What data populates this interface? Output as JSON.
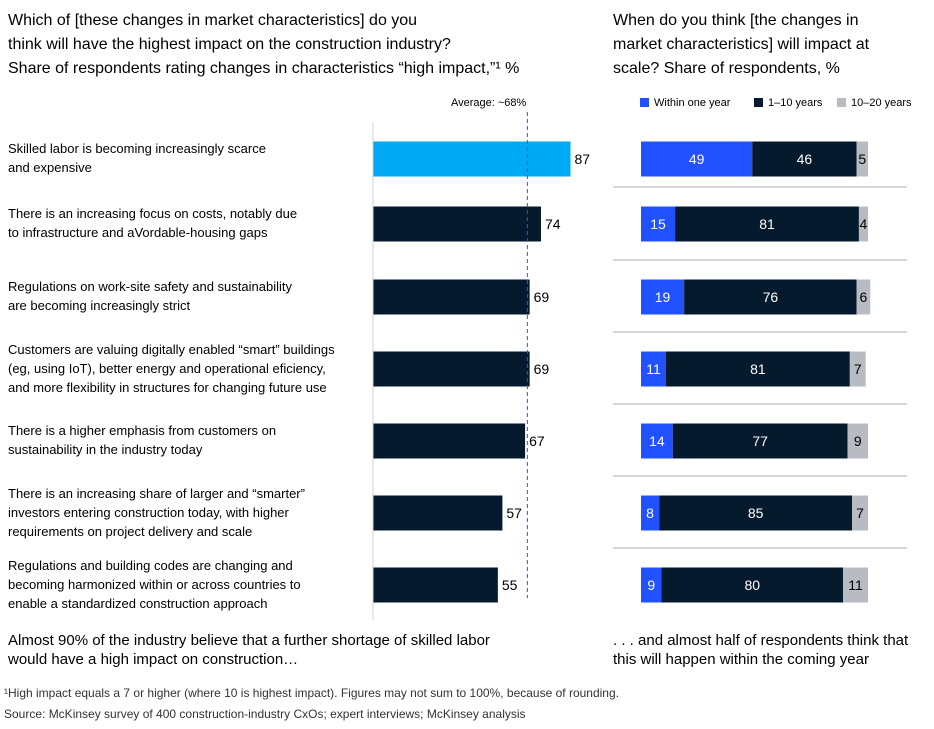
{
  "left_header": {
    "line1": "Which of [these changes in market characteristics] do you",
    "line2": "think will have the highest impact on the construction industry?",
    "subtitle": "Share of respondents rating changes in characteristics “high impact,”¹ %"
  },
  "right_header": {
    "line1": "When do you think [the changes in",
    "line2": "market characteristics] will impact at",
    "line3": "scale? Share of respondents, %"
  },
  "average_label": "Average: ~68%",
  "rows": [
    {
      "lines": [
        "Skilled labor is becoming increasingly scarce",
        "and expensive"
      ]
    },
    {
      "lines": [
        "There is an increasing focus on costs, notably due",
        "to infrastructure and aVordable-housing gaps"
      ]
    },
    {
      "lines": [
        "Regulations on work-site safety and sustainability",
        "are becoming increasingly strict"
      ]
    },
    {
      "lines": [
        "Customers are valuing digitally enabled “smart” buildings",
        "(eg, using IoT), better energy and operational eficiency,",
        "and more flexibility in structures for changing future use"
      ]
    },
    {
      "lines": [
        "There is a higher emphasis from customers on",
        "sustainability in the industry today"
      ]
    },
    {
      "lines": [
        "There is an increasing share of larger and “smarter”",
        "investors entering construction today, with higher",
        "requirements on project delivery and scale"
      ]
    },
    {
      "lines": [
        "Regulations and building codes are changing and",
        "becoming harmonized within or across countries to",
        "enable a standardized construction approach"
      ]
    }
  ],
  "footer_left": {
    "line1": "Almost 90% of the industry believe that a further shortage of skilled labor",
    "line2": "would have a high impact on construction…"
  },
  "footer_right": {
    "line1": ". . . and almost half of respondents think that",
    "line2": "this will happen within the coming year"
  },
  "footnote": "¹High impact equals a 7 or higher (where 10 is highest impact). Figures may not sum to 100%, because of rounding.",
  "source": "Source: McKinsey survey of 400 construction-industry CxOs; expert interviews; McKinsey analysis",
  "colors": {
    "highlight": "#00a9f4",
    "dark": "#061a2e",
    "within_one_year": "#2251ff",
    "one_to_ten_years": "#061a2e",
    "ten_to_twenty_years": "#b8bcc2",
    "average_line": "#2251ff",
    "divider": "#b0b0b0"
  },
  "chart_data": [
    {
      "type": "bar",
      "orientation": "horizontal",
      "categories": [
        "Skilled labor is becoming increasingly scarce and expensive",
        "There is an increasing focus on costs, notably due to infrastructure and aVordable-housing gaps",
        "Regulations on work-site safety and sustainability are becoming increasingly strict",
        "Customers are valuing digitally enabled “smart” buildings (eg, using IoT), better energy and operational eficiency, and more flexibility in structures for changing future use",
        "There is a higher emphasis from customers on sustainability in the industry today",
        "There is an increasing share of larger and “smarter” investors entering construction today, with higher requirements on project delivery and scale",
        "Regulations and building codes are changing and becoming harmonized within or across countries to enable a standardized construction approach"
      ],
      "values": [
        87,
        74,
        69,
        69,
        67,
        57,
        55
      ],
      "highlight_index": 0,
      "average": 68,
      "xlim": [
        0,
        100
      ],
      "grid": false
    },
    {
      "type": "bar",
      "orientation": "horizontal",
      "stacked": true,
      "legend_position": "top-right",
      "series": [
        {
          "name": "Within one year",
          "values": [
            49,
            15,
            19,
            11,
            14,
            8,
            9
          ]
        },
        {
          "name": "1–10 years",
          "values": [
            46,
            81,
            76,
            81,
            77,
            85,
            80
          ]
        },
        {
          "name": "10–20 years",
          "values": [
            5,
            4,
            6,
            7,
            9,
            7,
            11
          ]
        }
      ],
      "xlim": [
        0,
        100
      ],
      "grid": false
    }
  ]
}
